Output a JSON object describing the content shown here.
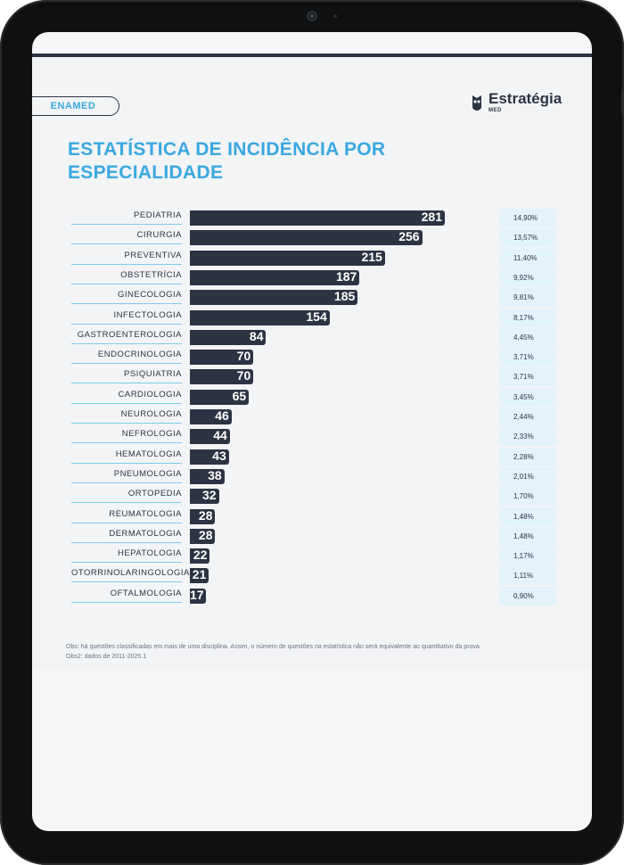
{
  "header": {
    "badge": "ENAMED",
    "brand": "Estratégia",
    "brand_sub": "MED",
    "title_line1": "ESTATÍSTICA DE INCIDÊNCIA POR",
    "title_line2": "ESPECIALIDADE"
  },
  "notes": {
    "obs1": "Obs: há questões classificadas em mais de uma disciplina. Assim, o número de questões na estatística não será equivalente ao quantitativo da prova.",
    "obs2": "Obs2: dados de 2011-2025.1"
  },
  "colors": {
    "bar": "#2c3444",
    "accent": "#3aa8e0",
    "pct_bg": "#e3f3fc"
  },
  "chart_data": {
    "type": "bar",
    "orientation": "horizontal",
    "title": "ESTATÍSTICA DE INCIDÊNCIA POR ESPECIALIDADE",
    "categories": [
      "PEDIATRIA",
      "CIRURGIA",
      "PREVENTIVA",
      "OBSTETRÍCIA",
      "GINECOLOGIA",
      "INFECTOLOGIA",
      "GASTROENTEROLOGIA",
      "ENDOCRINOLOGIA",
      "PSIQUIATRIA",
      "CARDIOLOGIA",
      "NEUROLOGIA",
      "NEFROLOGIA",
      "HEMATOLOGIA",
      "PNEUMOLOGIA",
      "ORTOPEDIA",
      "REUMATOLOGIA",
      "DERMATOLOGIA",
      "HEPATOLOGIA",
      "OTORRINOLARINGOLOGIA",
      "OFTALMOLOGIA"
    ],
    "values": [
      281,
      256,
      215,
      187,
      185,
      154,
      84,
      70,
      70,
      65,
      46,
      44,
      43,
      38,
      32,
      28,
      28,
      22,
      21,
      17
    ],
    "percentages": [
      "14,90%",
      "13,57%",
      "11,40%",
      "9,92%",
      "9,81%",
      "8,17%",
      "4,45%",
      "3,71%",
      "3,71%",
      "3,45%",
      "2,44%",
      "2,33%",
      "2,28%",
      "2,01%",
      "1,70%",
      "1,48%",
      "1,48%",
      "1,17%",
      "1,11%",
      "0,90%"
    ],
    "xlim": [
      0,
      281
    ],
    "grid": false,
    "legend": "none"
  }
}
